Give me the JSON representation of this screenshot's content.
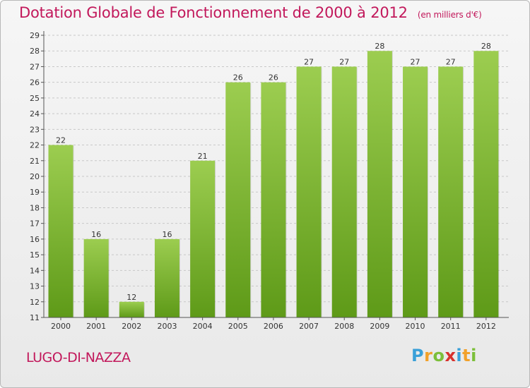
{
  "title": "Dotation Globale de Fonctionnement de 2000 à 2012",
  "unit_note": "(en milliers d'€)",
  "commune": "LUGO-DI-NAZZA",
  "logo": {
    "text": "Proxiti",
    "letters": [
      {
        "ch": "P",
        "color": "#3aa0d8"
      },
      {
        "ch": "r",
        "color": "#f2a12a"
      },
      {
        "ch": "o",
        "color": "#7cbf3a"
      },
      {
        "ch": "x",
        "color": "#d8312c"
      },
      {
        "ch": "i",
        "color": "#3aa0d8"
      },
      {
        "ch": "t",
        "color": "#f2a12a"
      },
      {
        "ch": "i",
        "color": "#7cbf3a"
      }
    ]
  },
  "colors": {
    "bar_top": "#9ccd50",
    "bar_bottom": "#5e9a18",
    "title": "#c2185b"
  },
  "chart_data": {
    "type": "bar",
    "categories": [
      "2000",
      "2001",
      "2002",
      "2003",
      "2004",
      "2005",
      "2006",
      "2007",
      "2008",
      "2009",
      "2010",
      "2011",
      "2012"
    ],
    "values": [
      22,
      16,
      12,
      16,
      21,
      26,
      26,
      27,
      27,
      28,
      27,
      27,
      28
    ],
    "ylim": [
      11,
      29
    ],
    "yticks": [
      11,
      12,
      13,
      14,
      15,
      16,
      17,
      18,
      19,
      20,
      21,
      22,
      23,
      24,
      25,
      26,
      27,
      28,
      29
    ],
    "grid": true
  }
}
